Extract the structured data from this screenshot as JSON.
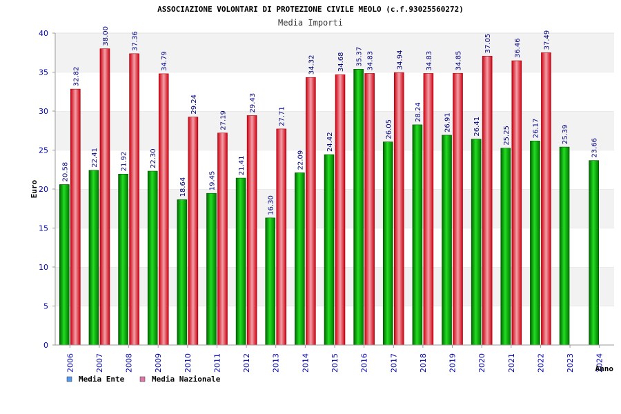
{
  "chart_data": {
    "type": "bar",
    "title": "ASSOCIAZIONE VOLONTARI DI PROTEZIONE CIVILE MEOLO (c.f.93025560272)",
    "subtitle": "Media Importi",
    "xlabel": "Anno",
    "ylabel": "Euro",
    "ylim": [
      0,
      40
    ],
    "yticks": [
      "0",
      "5",
      "10",
      "15",
      "20",
      "25",
      "30",
      "35",
      "40"
    ],
    "categories": [
      "2006",
      "2007",
      "2008",
      "2009",
      "2010",
      "2011",
      "2012",
      "2013",
      "2014",
      "2015",
      "2016",
      "2017",
      "2018",
      "2019",
      "2020",
      "2021",
      "2022",
      "2023",
      "2024"
    ],
    "series": [
      {
        "name": "Media Ente",
        "color": "#00aa00",
        "values": [
          20.58,
          22.41,
          21.92,
          22.3,
          18.64,
          19.45,
          21.41,
          16.3,
          22.09,
          24.42,
          35.37,
          26.05,
          28.24,
          26.91,
          26.41,
          25.25,
          26.17,
          25.39,
          23.66
        ],
        "labels": [
          "20.58",
          "22.41",
          "21.92",
          "22.30",
          "18.64",
          "19.45",
          "21.41",
          "16.30",
          "22.09",
          "24.42",
          "35.37",
          "26.05",
          "28.24",
          "26.91",
          "26.41",
          "25.25",
          "26.17",
          "25.39",
          "23.66"
        ]
      },
      {
        "name": "Media Nazionale",
        "color": "#e0202a",
        "values": [
          32.82,
          38.0,
          37.36,
          34.79,
          29.24,
          27.19,
          29.43,
          27.71,
          34.32,
          34.68,
          34.83,
          34.94,
          34.83,
          34.85,
          37.05,
          36.46,
          37.49,
          null,
          null
        ],
        "labels": [
          "32.82",
          "38.00",
          "37.36",
          "34.79",
          "29.24",
          "27.19",
          "29.43",
          "27.71",
          "34.32",
          "34.68",
          "34.83",
          "34.94",
          "34.83",
          "34.85",
          "37.05",
          "36.46",
          "37.49",
          null,
          null
        ]
      }
    ],
    "legend": [
      {
        "label": "Media Ente",
        "color": "#5599ee"
      },
      {
        "label": "Media Nazionale",
        "color": "#dd77aa"
      }
    ],
    "legend_position": "bottom-left",
    "grid": true
  }
}
